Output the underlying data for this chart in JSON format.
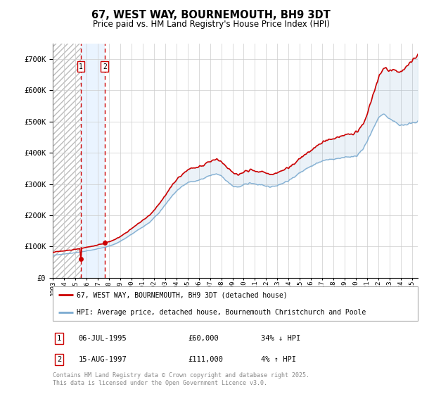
{
  "title": "67, WEST WAY, BOURNEMOUTH, BH9 3DT",
  "subtitle": "Price paid vs. HM Land Registry's House Price Index (HPI)",
  "legend_line1": "67, WEST WAY, BOURNEMOUTH, BH9 3DT (detached house)",
  "legend_line2": "HPI: Average price, detached house, Bournemouth Christchurch and Poole",
  "footer": "Contains HM Land Registry data © Crown copyright and database right 2025.\nThis data is licensed under the Open Government Licence v3.0.",
  "transaction1_date": "06-JUL-1995",
  "transaction1_price": "£60,000",
  "transaction1_hpi": "34% ↓ HPI",
  "transaction2_date": "15-AUG-1997",
  "transaction2_price": "£111,000",
  "transaction2_hpi": "4% ↑ HPI",
  "transaction1_x": 1995.51,
  "transaction1_y": 60000,
  "transaction2_x": 1997.62,
  "transaction2_y": 111000,
  "ylim": [
    0,
    750000
  ],
  "yticks": [
    0,
    100000,
    200000,
    300000,
    400000,
    500000,
    600000,
    700000
  ],
  "ytick_labels": [
    "£0",
    "£100K",
    "£200K",
    "£300K",
    "£400K",
    "£500K",
    "£600K",
    "£700K"
  ],
  "xlim_start": 1993.0,
  "xlim_end": 2025.5,
  "hatch_end": 1997.5,
  "vline1_x": 1995.51,
  "vline2_x": 1997.62,
  "line_color_property": "#cc0000",
  "line_color_hpi": "#7aaad0",
  "background_color": "#ffffff",
  "hatch_color": "#bbbbbb",
  "grid_color": "#cccccc",
  "vline_color": "#cc0000",
  "marker_color": "#cc0000",
  "box_color": "#cc0000"
}
